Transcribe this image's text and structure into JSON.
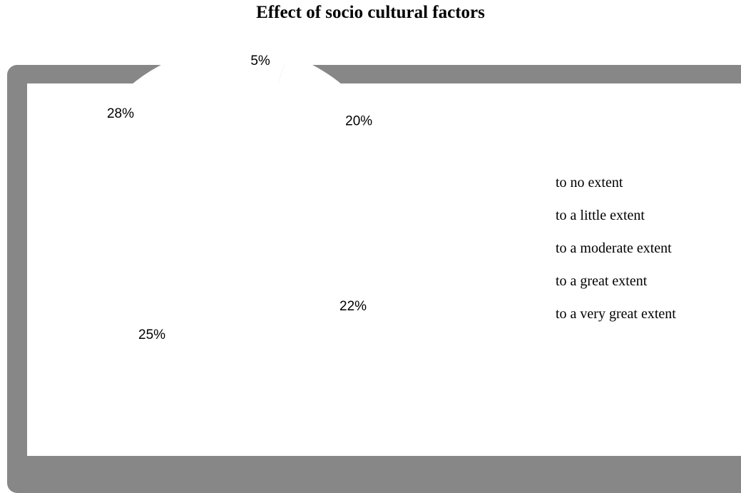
{
  "chart_data": {
    "type": "pie",
    "title": "Effect of socio cultural factors",
    "categories": [
      "to no extent",
      "to a little extent",
      "to a moderate extent",
      "to a great extent",
      "to a very great extent"
    ],
    "values": [
      5,
      20,
      22,
      25,
      28
    ],
    "data_labels": [
      "5%",
      "20%",
      "22%",
      "25%",
      "28%"
    ],
    "legend_position": "right",
    "frame_color": "#878787",
    "background_color": "#ffffff"
  }
}
